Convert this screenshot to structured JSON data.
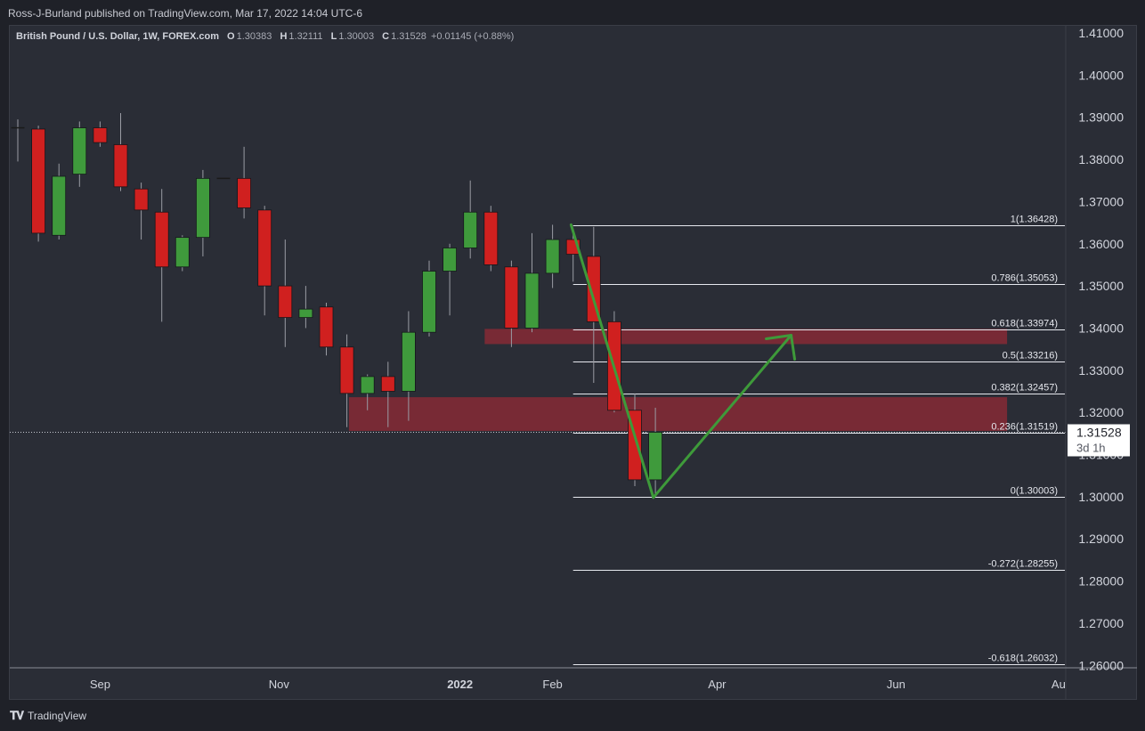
{
  "publisher": "Ross-J-Burland published on TradingView.com, Mar 17, 2022 14:04 UTC-6",
  "legend": {
    "symbol": "British Pound / U.S. Dollar, 1W, FOREX.com",
    "o_label": "O",
    "o": "1.30383",
    "h_label": "H",
    "h": "1.32111",
    "l_label": "L",
    "l": "1.30003",
    "c_label": "C",
    "c": "1.31528",
    "change": "+0.01145 (+0.88%)"
  },
  "brand": "TradingView",
  "colors": {
    "up": "#3f9a3c",
    "down": "#d0201f",
    "zone": "#8a2a36",
    "arrow": "#3e9a3a",
    "background": "#2a2d36"
  },
  "chart_data": {
    "type": "candlestick",
    "ylim": [
      1.258,
      1.414
    ],
    "y_ticks": [
      "1.41000",
      "1.40000",
      "1.39000",
      "1.38000",
      "1.37000",
      "1.36000",
      "1.35000",
      "1.34000",
      "1.33000",
      "1.32000",
      "1.31000",
      "1.30000",
      "1.29000",
      "1.28000",
      "1.27000",
      "1.26000"
    ],
    "x_ticks": [
      {
        "label": "Sep",
        "week": 4,
        "bold": false
      },
      {
        "label": "Nov",
        "week": 12.7,
        "bold": false
      },
      {
        "label": "2022",
        "week": 21.5,
        "bold": true
      },
      {
        "label": "Feb",
        "week": 26,
        "bold": false
      },
      {
        "label": "Apr",
        "week": 34,
        "bold": false
      },
      {
        "label": "Jun",
        "week": 42.7,
        "bold": false
      },
      {
        "label": "Au",
        "week": 50.6,
        "bold": false
      }
    ],
    "candles": [
      {
        "o": 1.3875,
        "h": 1.3895,
        "l": 1.3795,
        "c": 1.3875
      },
      {
        "o": 1.3872,
        "h": 1.388,
        "l": 1.3605,
        "c": 1.3625
      },
      {
        "o": 1.362,
        "h": 1.379,
        "l": 1.361,
        "c": 1.376
      },
      {
        "o": 1.3765,
        "h": 1.389,
        "l": 1.3735,
        "c": 1.3875
      },
      {
        "o": 1.3875,
        "h": 1.389,
        "l": 1.383,
        "c": 1.384
      },
      {
        "o": 1.3835,
        "h": 1.391,
        "l": 1.3725,
        "c": 1.3735
      },
      {
        "o": 1.373,
        "h": 1.3745,
        "l": 1.361,
        "c": 1.368
      },
      {
        "o": 1.3675,
        "h": 1.373,
        "l": 1.3415,
        "c": 1.3545
      },
      {
        "o": 1.3545,
        "h": 1.362,
        "l": 1.3535,
        "c": 1.3615
      },
      {
        "o": 1.3615,
        "h": 1.3775,
        "l": 1.357,
        "c": 1.3755
      },
      {
        "o": 1.3755,
        "h": 1.3755,
        "l": 1.3755,
        "c": 1.3755
      },
      {
        "o": 1.3755,
        "h": 1.383,
        "l": 1.366,
        "c": 1.3685
      },
      {
        "o": 1.368,
        "h": 1.369,
        "l": 1.343,
        "c": 1.35
      },
      {
        "o": 1.35,
        "h": 1.361,
        "l": 1.3355,
        "c": 1.3425
      },
      {
        "o": 1.3425,
        "h": 1.35,
        "l": 1.34,
        "c": 1.3445
      },
      {
        "o": 1.345,
        "h": 1.346,
        "l": 1.3335,
        "c": 1.3355
      },
      {
        "o": 1.3355,
        "h": 1.3385,
        "l": 1.3165,
        "c": 1.3245
      },
      {
        "o": 1.3245,
        "h": 1.329,
        "l": 1.3205,
        "c": 1.3285
      },
      {
        "o": 1.3285,
        "h": 1.332,
        "l": 1.3165,
        "c": 1.325
      },
      {
        "o": 1.325,
        "h": 1.344,
        "l": 1.318,
        "c": 1.339
      },
      {
        "o": 1.339,
        "h": 1.356,
        "l": 1.338,
        "c": 1.3535
      },
      {
        "o": 1.3535,
        "h": 1.36,
        "l": 1.343,
        "c": 1.359
      },
      {
        "o": 1.359,
        "h": 1.375,
        "l": 1.3565,
        "c": 1.3675
      },
      {
        "o": 1.3675,
        "h": 1.369,
        "l": 1.3535,
        "c": 1.355
      },
      {
        "o": 1.3545,
        "h": 1.356,
        "l": 1.3355,
        "c": 1.34
      },
      {
        "o": 1.34,
        "h": 1.3625,
        "l": 1.339,
        "c": 1.353
      },
      {
        "o": 1.353,
        "h": 1.3645,
        "l": 1.3495,
        "c": 1.361
      },
      {
        "o": 1.361,
        "h": 1.3625,
        "l": 1.351,
        "c": 1.3575
      },
      {
        "o": 1.357,
        "h": 1.364,
        "l": 1.327,
        "c": 1.3415
      },
      {
        "o": 1.3415,
        "h": 1.344,
        "l": 1.32,
        "c": 1.3205
      },
      {
        "o": 1.3205,
        "h": 1.3245,
        "l": 1.3025,
        "c": 1.304
      },
      {
        "o": 1.304,
        "h": 1.3211,
        "l": 1.3,
        "c": 1.3153
      }
    ],
    "fib_levels": [
      {
        "label": "1(1.36428)",
        "value": 1.36428
      },
      {
        "label": "0.786(1.35053)",
        "value": 1.35053
      },
      {
        "label": "0.618(1.33974)",
        "value": 1.33974
      },
      {
        "label": "0.5(1.33216)",
        "value": 1.33216
      },
      {
        "label": "0.382(1.32457)",
        "value": 1.32457
      },
      {
        "label": "0.236(1.31519)",
        "value": 1.31519
      },
      {
        "label": "0(1.30003)",
        "value": 1.30003
      },
      {
        "label": "-0.272(1.28255)",
        "value": 1.28255
      },
      {
        "label": "-0.618(1.26032)",
        "value": 1.26032
      }
    ],
    "zones": [
      {
        "y1": 1.3398,
        "y2": 1.3362,
        "start_week": 22.7,
        "end_week": 48.1
      },
      {
        "y1": 1.3236,
        "y2": 1.3156,
        "start_week": 16.1,
        "end_week": 48.1
      }
    ],
    "arrow_path": [
      {
        "week": 26.9,
        "price": 1.3645
      },
      {
        "week": 30.9,
        "price": 1.2998
      },
      {
        "week": 37.6,
        "price": 1.3383
      }
    ],
    "last_price": {
      "value": "1.31528",
      "countdown": "3d 1h",
      "price": 1.31528
    }
  }
}
